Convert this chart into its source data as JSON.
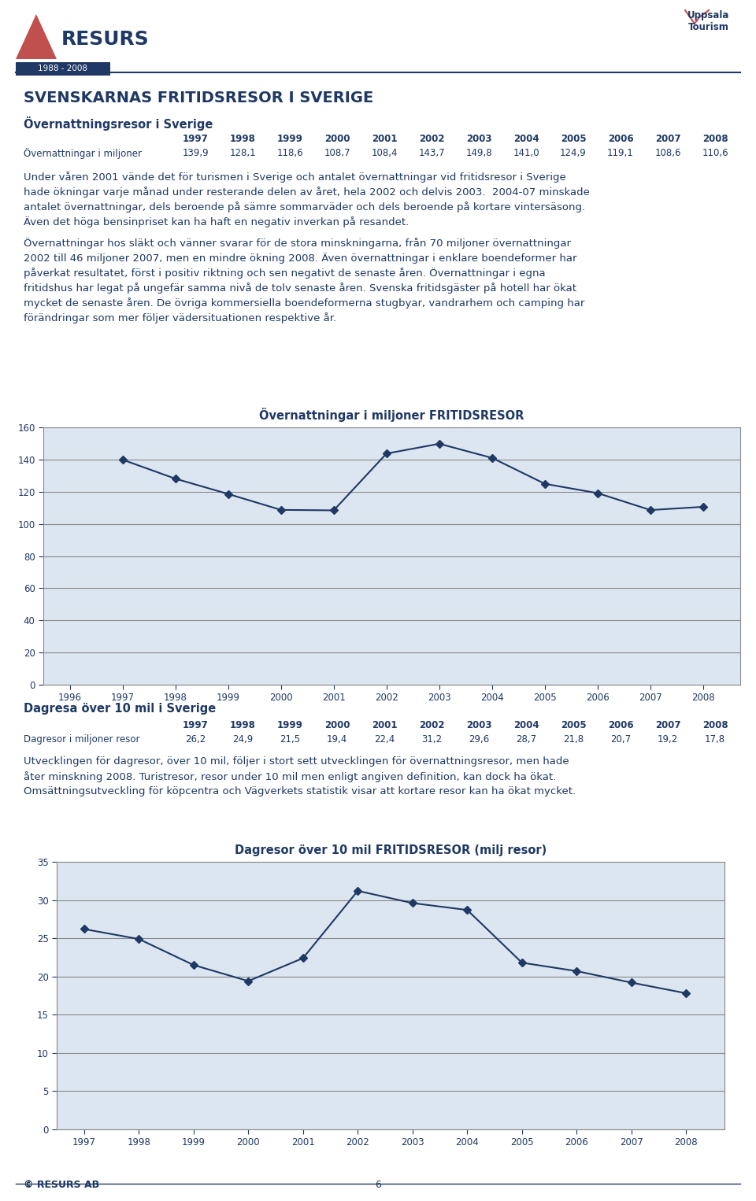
{
  "page_bg": "#ffffff",
  "text_color": "#1f3864",
  "title": "SVENSKARNAS FRITIDSRESOR I SVERIGE",
  "section1_title": "Övernattningsresor i Sverige",
  "section1_years": [
    "1997",
    "1998",
    "1999",
    "2000",
    "2001",
    "2002",
    "2003",
    "2004",
    "2005",
    "2006",
    "2007",
    "2008"
  ],
  "section1_label": "Övernattningar i miljoner",
  "section1_values": [
    139.9,
    128.1,
    118.6,
    108.7,
    108.4,
    143.7,
    149.8,
    141.0,
    124.9,
    119.1,
    108.6,
    110.6
  ],
  "p1_lines": [
    "Under våren 2001 vände det för turismen i Sverige och antalet övernattningar vid fritidsresor i Sverige",
    "hade ökningar varje månad under resterande delen av året, hela 2002 och delvis 2003.  2004-07 minskade",
    "antalet övernattningar, dels beroende på sämre sommarväder och dels beroende på kortare vintersäsong.",
    "Även det höga bensinpriset kan ha haft en negativ inverkan på resandet."
  ],
  "p2_lines": [
    "Övernattningar hos släkt och vänner svarar för de stora minskningarna, från 70 miljoner övernattningar",
    "2002 till 46 miljoner 2007, men en mindre ökning 2008. Även övernattningar i enklare boendeformer har",
    "påverkat resultatet, först i positiv riktning och sen negativt de senaste åren. Övernattningar i egna",
    "fritidshus har legat på ungefär samma nivå de tolv senaste åren. Svenska fritidsgäster på hotell har ökat",
    "mycket de senaste åren. De övriga kommersiella boendeformerna stugbyar, vandrarhem och camping har",
    "förändringar som mer följer vädersituationen respektive år."
  ],
  "chart1_title": "Övernattningar i miljoner FRITIDSRESOR",
  "chart1_x": [
    1996,
    1997,
    1998,
    1999,
    2000,
    2001,
    2002,
    2003,
    2004,
    2005,
    2006,
    2007,
    2008
  ],
  "chart1_y": [
    null,
    139.9,
    128.1,
    118.6,
    108.7,
    108.4,
    143.7,
    149.8,
    141.0,
    124.9,
    119.1,
    108.6,
    110.6
  ],
  "chart1_ylim": [
    0,
    160
  ],
  "chart1_yticks": [
    0,
    20,
    40,
    60,
    80,
    100,
    120,
    140,
    160
  ],
  "chart1_bg": "#dce6f1",
  "chart1_line_color": "#1f3864",
  "section2_title": "Dagresa över 10 mil i Sverige",
  "section2_years": [
    "1997",
    "1998",
    "1999",
    "2000",
    "2001",
    "2002",
    "2003",
    "2004",
    "2005",
    "2006",
    "2007",
    "2008"
  ],
  "section2_label": "Dagresor i miljoner resor",
  "section2_values": [
    26.2,
    24.9,
    21.5,
    19.4,
    22.4,
    31.2,
    29.6,
    28.7,
    21.8,
    20.7,
    19.2,
    17.8
  ],
  "p3_lines": [
    "Utvecklingen för dagresor, över 10 mil, följer i stort sett utvecklingen för övernattningsresor, men hade",
    "åter minskning 2008. Turistresor, resor under 10 mil men enligt angiven definition, kan dock ha ökat.",
    "Omsättningsutveckling för köpcentra och Vägverkets statistik visar att kortare resor kan ha ökat mycket."
  ],
  "chart2_title": "Dagresor över 10 mil FRITIDSRESOR (milj resor)",
  "chart2_x": [
    1997,
    1998,
    1999,
    2000,
    2001,
    2002,
    2003,
    2004,
    2005,
    2006,
    2007,
    2008
  ],
  "chart2_y": [
    26.2,
    24.9,
    21.5,
    19.4,
    22.4,
    31.2,
    29.6,
    28.7,
    21.8,
    20.7,
    19.2,
    17.8
  ],
  "chart2_ylim": [
    0,
    35
  ],
  "chart2_yticks": [
    0,
    5,
    10,
    15,
    20,
    25,
    30,
    35
  ],
  "chart2_bg": "#dce6f1",
  "chart2_line_color": "#1f3864",
  "footer_text": "© RESURS AB",
  "footer_page": "6",
  "resurs_triangle_color": "#c0504d",
  "resurs_year_text": "1988 - 2008",
  "resurs_year_bg": "#1f3864"
}
